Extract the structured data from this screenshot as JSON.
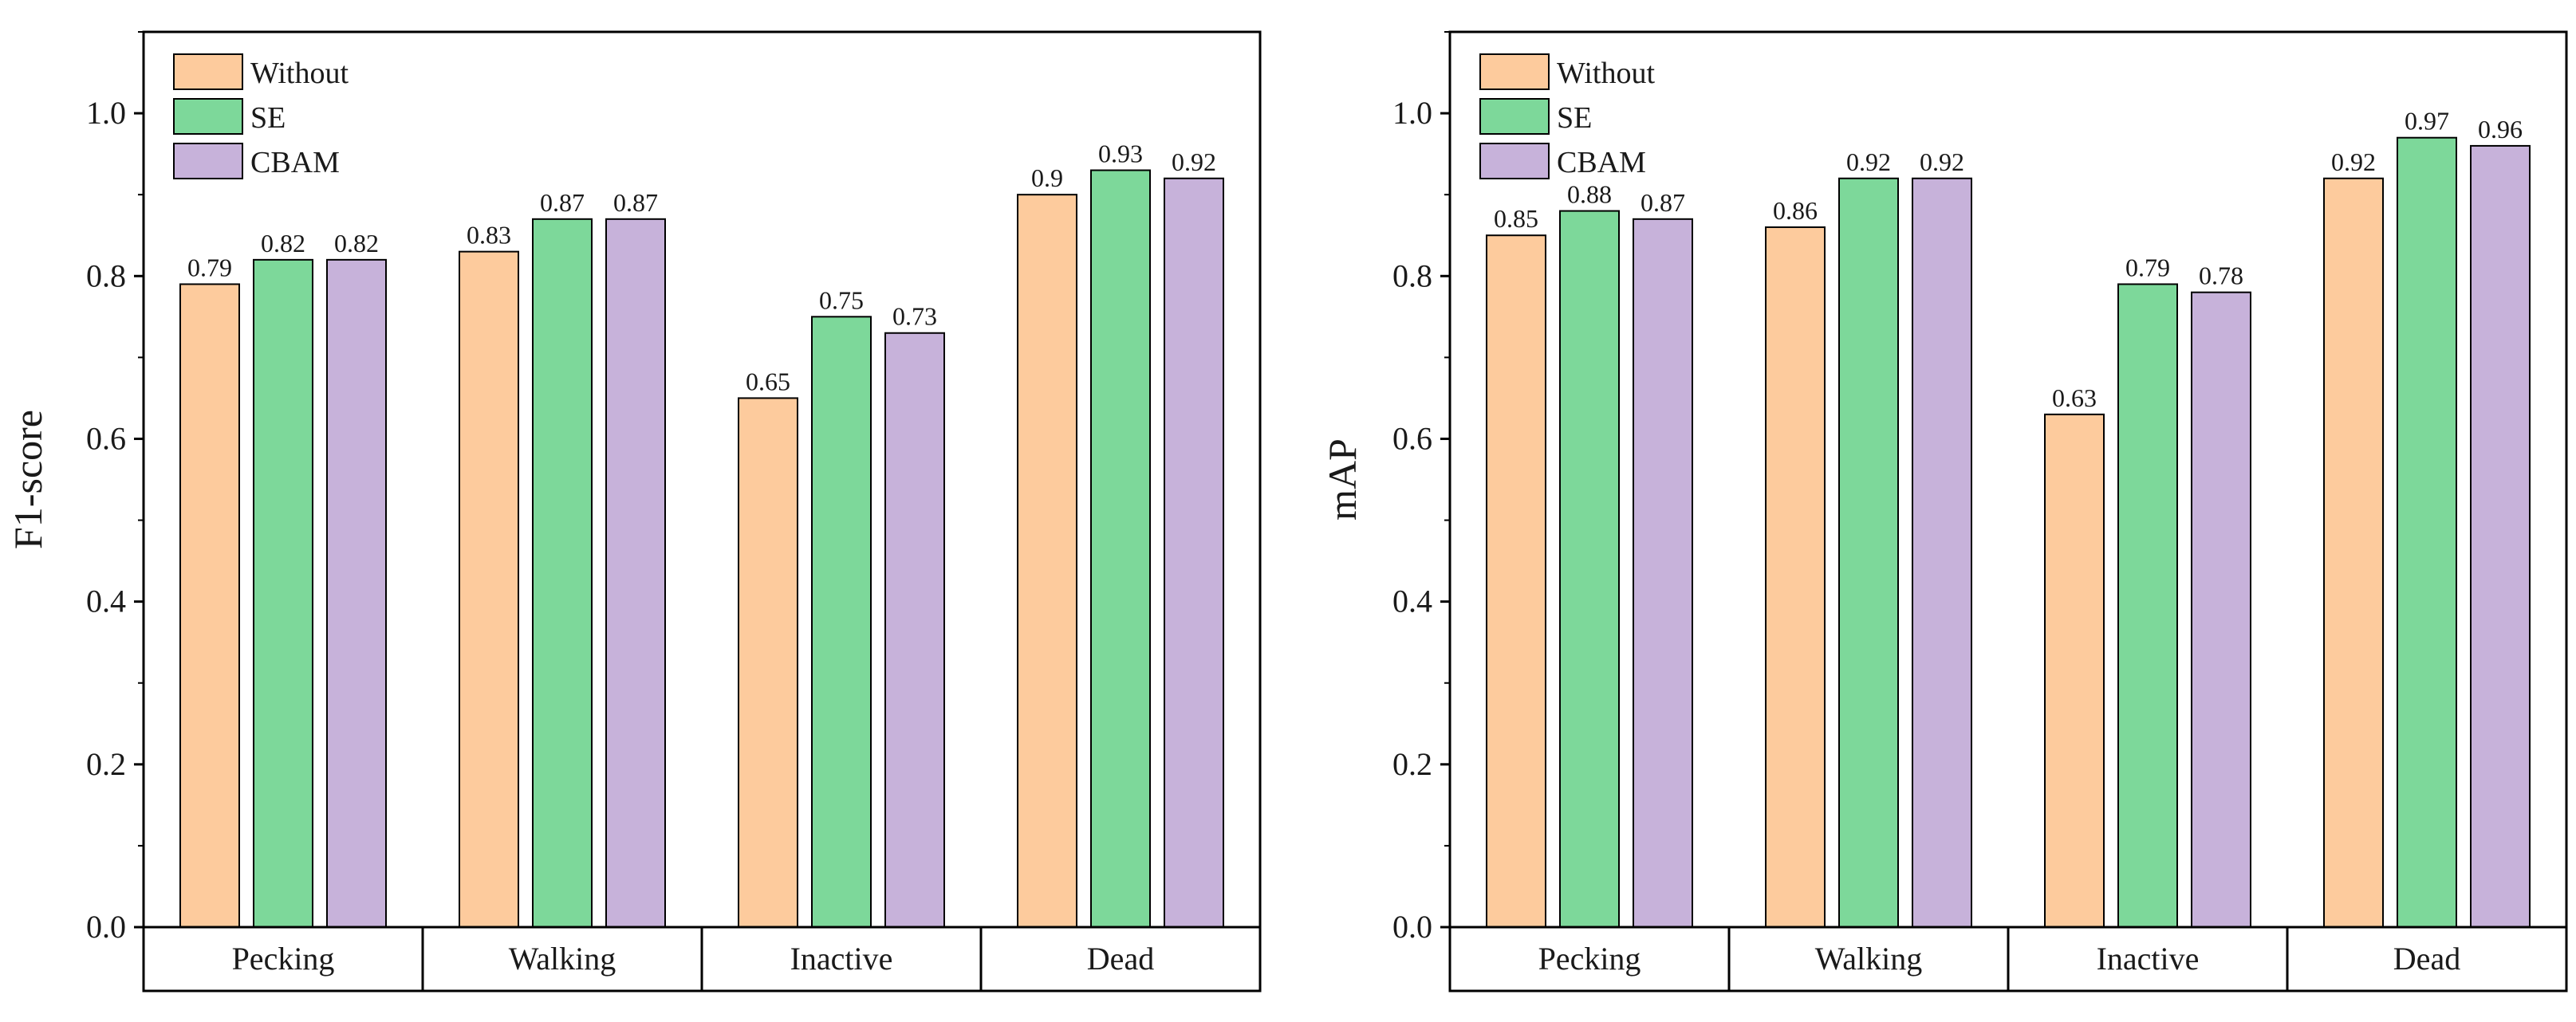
{
  "colors": {
    "Without": "#fdcb9d",
    "SE": "#7dd89a",
    "CBAM": "#c7b2da",
    "axis": "#000000"
  },
  "chart_data": [
    {
      "type": "bar",
      "id": "f1",
      "ylabel": "F1-score",
      "xlabel": "",
      "title": "",
      "ylim": [
        0,
        1.1
      ],
      "yticks": [
        "0.0",
        "0.2",
        "0.4",
        "0.6",
        "0.8",
        "1.0"
      ],
      "ytick_values": [
        0,
        0.2,
        0.4,
        0.6,
        0.8,
        1.0
      ],
      "categories": [
        "Pecking",
        "Walking",
        "Inactive",
        "Dead"
      ],
      "legend_position": "top-left",
      "series": [
        {
          "name": "Without",
          "values": [
            0.79,
            0.83,
            0.65,
            0.9
          ],
          "labels": [
            "0.79",
            "0.83",
            "0.65",
            "0.9"
          ]
        },
        {
          "name": "SE",
          "values": [
            0.82,
            0.87,
            0.75,
            0.93
          ],
          "labels": [
            "0.82",
            "0.87",
            "0.75",
            "0.93"
          ]
        },
        {
          "name": "CBAM",
          "values": [
            0.82,
            0.87,
            0.73,
            0.92
          ],
          "labels": [
            "0.82",
            "0.87",
            "0.73",
            "0.92"
          ]
        }
      ]
    },
    {
      "type": "bar",
      "id": "map",
      "ylabel": "mAP",
      "xlabel": "",
      "title": "",
      "ylim": [
        0,
        1.1
      ],
      "yticks": [
        "0.0",
        "0.2",
        "0.4",
        "0.6",
        "0.8",
        "1.0"
      ],
      "ytick_values": [
        0,
        0.2,
        0.4,
        0.6,
        0.8,
        1.0
      ],
      "categories": [
        "Pecking",
        "Walking",
        "Inactive",
        "Dead"
      ],
      "legend_position": "top-left",
      "series": [
        {
          "name": "Without",
          "values": [
            0.85,
            0.86,
            0.63,
            0.92
          ],
          "labels": [
            "0.85",
            "0.86",
            "0.63",
            "0.92"
          ]
        },
        {
          "name": "SE",
          "values": [
            0.88,
            0.92,
            0.79,
            0.97
          ],
          "labels": [
            "0.88",
            "0.92",
            "0.79",
            "0.97"
          ]
        },
        {
          "name": "CBAM",
          "values": [
            0.87,
            0.92,
            0.78,
            0.96
          ],
          "labels": [
            "0.87",
            "0.92",
            "0.78",
            "0.96"
          ]
        }
      ]
    }
  ]
}
